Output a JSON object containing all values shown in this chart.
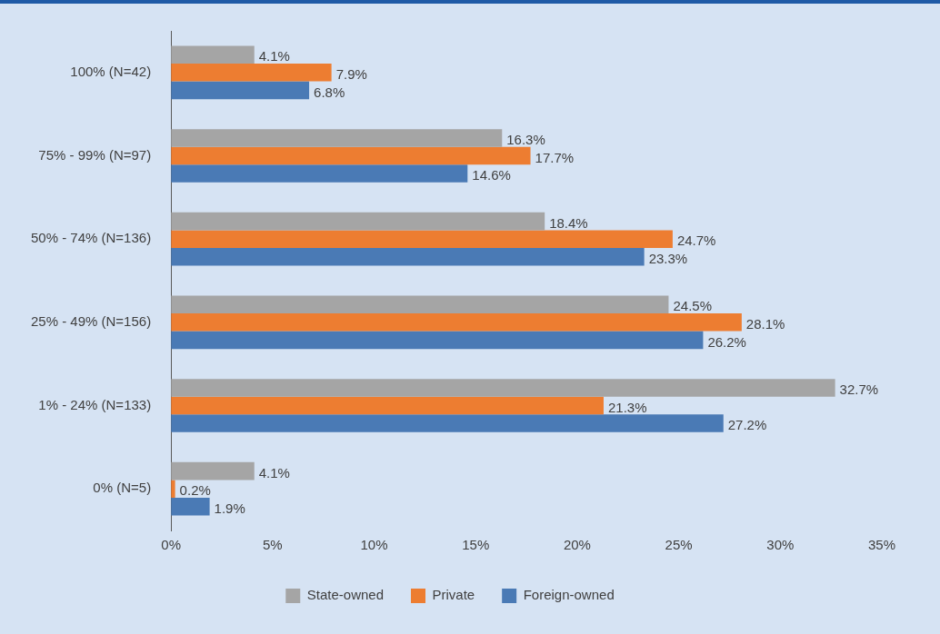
{
  "chart_data": {
    "type": "bar",
    "orientation": "horizontal",
    "categories": [
      "100% (N=42)",
      "75% - 99% (N=97)",
      "50% - 74% (N=136)",
      "25% - 49% (N=156)",
      "1% - 24% (N=133)",
      "0% (N=5)"
    ],
    "series": [
      {
        "name": "State-owned",
        "color": "#a5a5a5",
        "values": [
          4.1,
          16.3,
          18.4,
          24.5,
          32.7,
          4.1
        ],
        "value_labels": [
          "4.1%",
          "16.3%",
          "18.4%",
          "24.5%",
          "32.7%",
          "4.1%"
        ]
      },
      {
        "name": "Private",
        "color": "#ed7d31",
        "values": [
          7.9,
          17.7,
          24.7,
          28.1,
          21.3,
          0.2
        ],
        "value_labels": [
          "7.9%",
          "17.7%",
          "24.7%",
          "28.1%",
          "21.3%",
          "0.2%"
        ]
      },
      {
        "name": "Foreign-owned",
        "color": "#4a7ab5",
        "values": [
          6.8,
          14.6,
          23.3,
          26.2,
          27.2,
          1.9
        ],
        "value_labels": [
          "6.8%",
          "14.6%",
          "23.3%",
          "26.2%",
          "27.2%",
          "1.9%"
        ]
      }
    ],
    "xlim": [
      0,
      35
    ],
    "xticks": [
      {
        "value": 0,
        "label": "0%"
      },
      {
        "value": 5,
        "label": "5%"
      },
      {
        "value": 10,
        "label": "10%"
      },
      {
        "value": 15,
        "label": "15%"
      },
      {
        "value": 20,
        "label": "20%"
      },
      {
        "value": 25,
        "label": "25%"
      },
      {
        "value": 30,
        "label": "30%"
      },
      {
        "value": 35,
        "label": "35%"
      }
    ],
    "legend": "bottom"
  }
}
